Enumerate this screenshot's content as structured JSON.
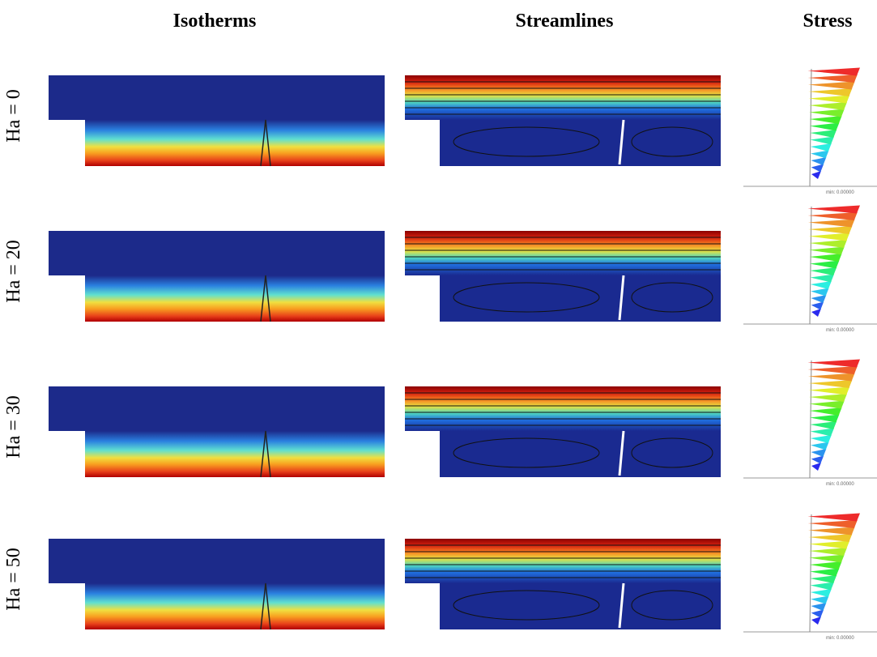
{
  "headers": [
    "Isotherms",
    "Streamlines",
    "Stress"
  ],
  "rows": [
    {
      "label": "Ha = 0",
      "stress_min": "min: 0.00000"
    },
    {
      "label": "Ha = 20",
      "stress_min": "min: 0.00000"
    },
    {
      "label": "Ha = 30",
      "stress_min": "min: 0.00000"
    },
    {
      "label": "Ha = 50",
      "stress_min": "min: 0.00000"
    }
  ]
}
